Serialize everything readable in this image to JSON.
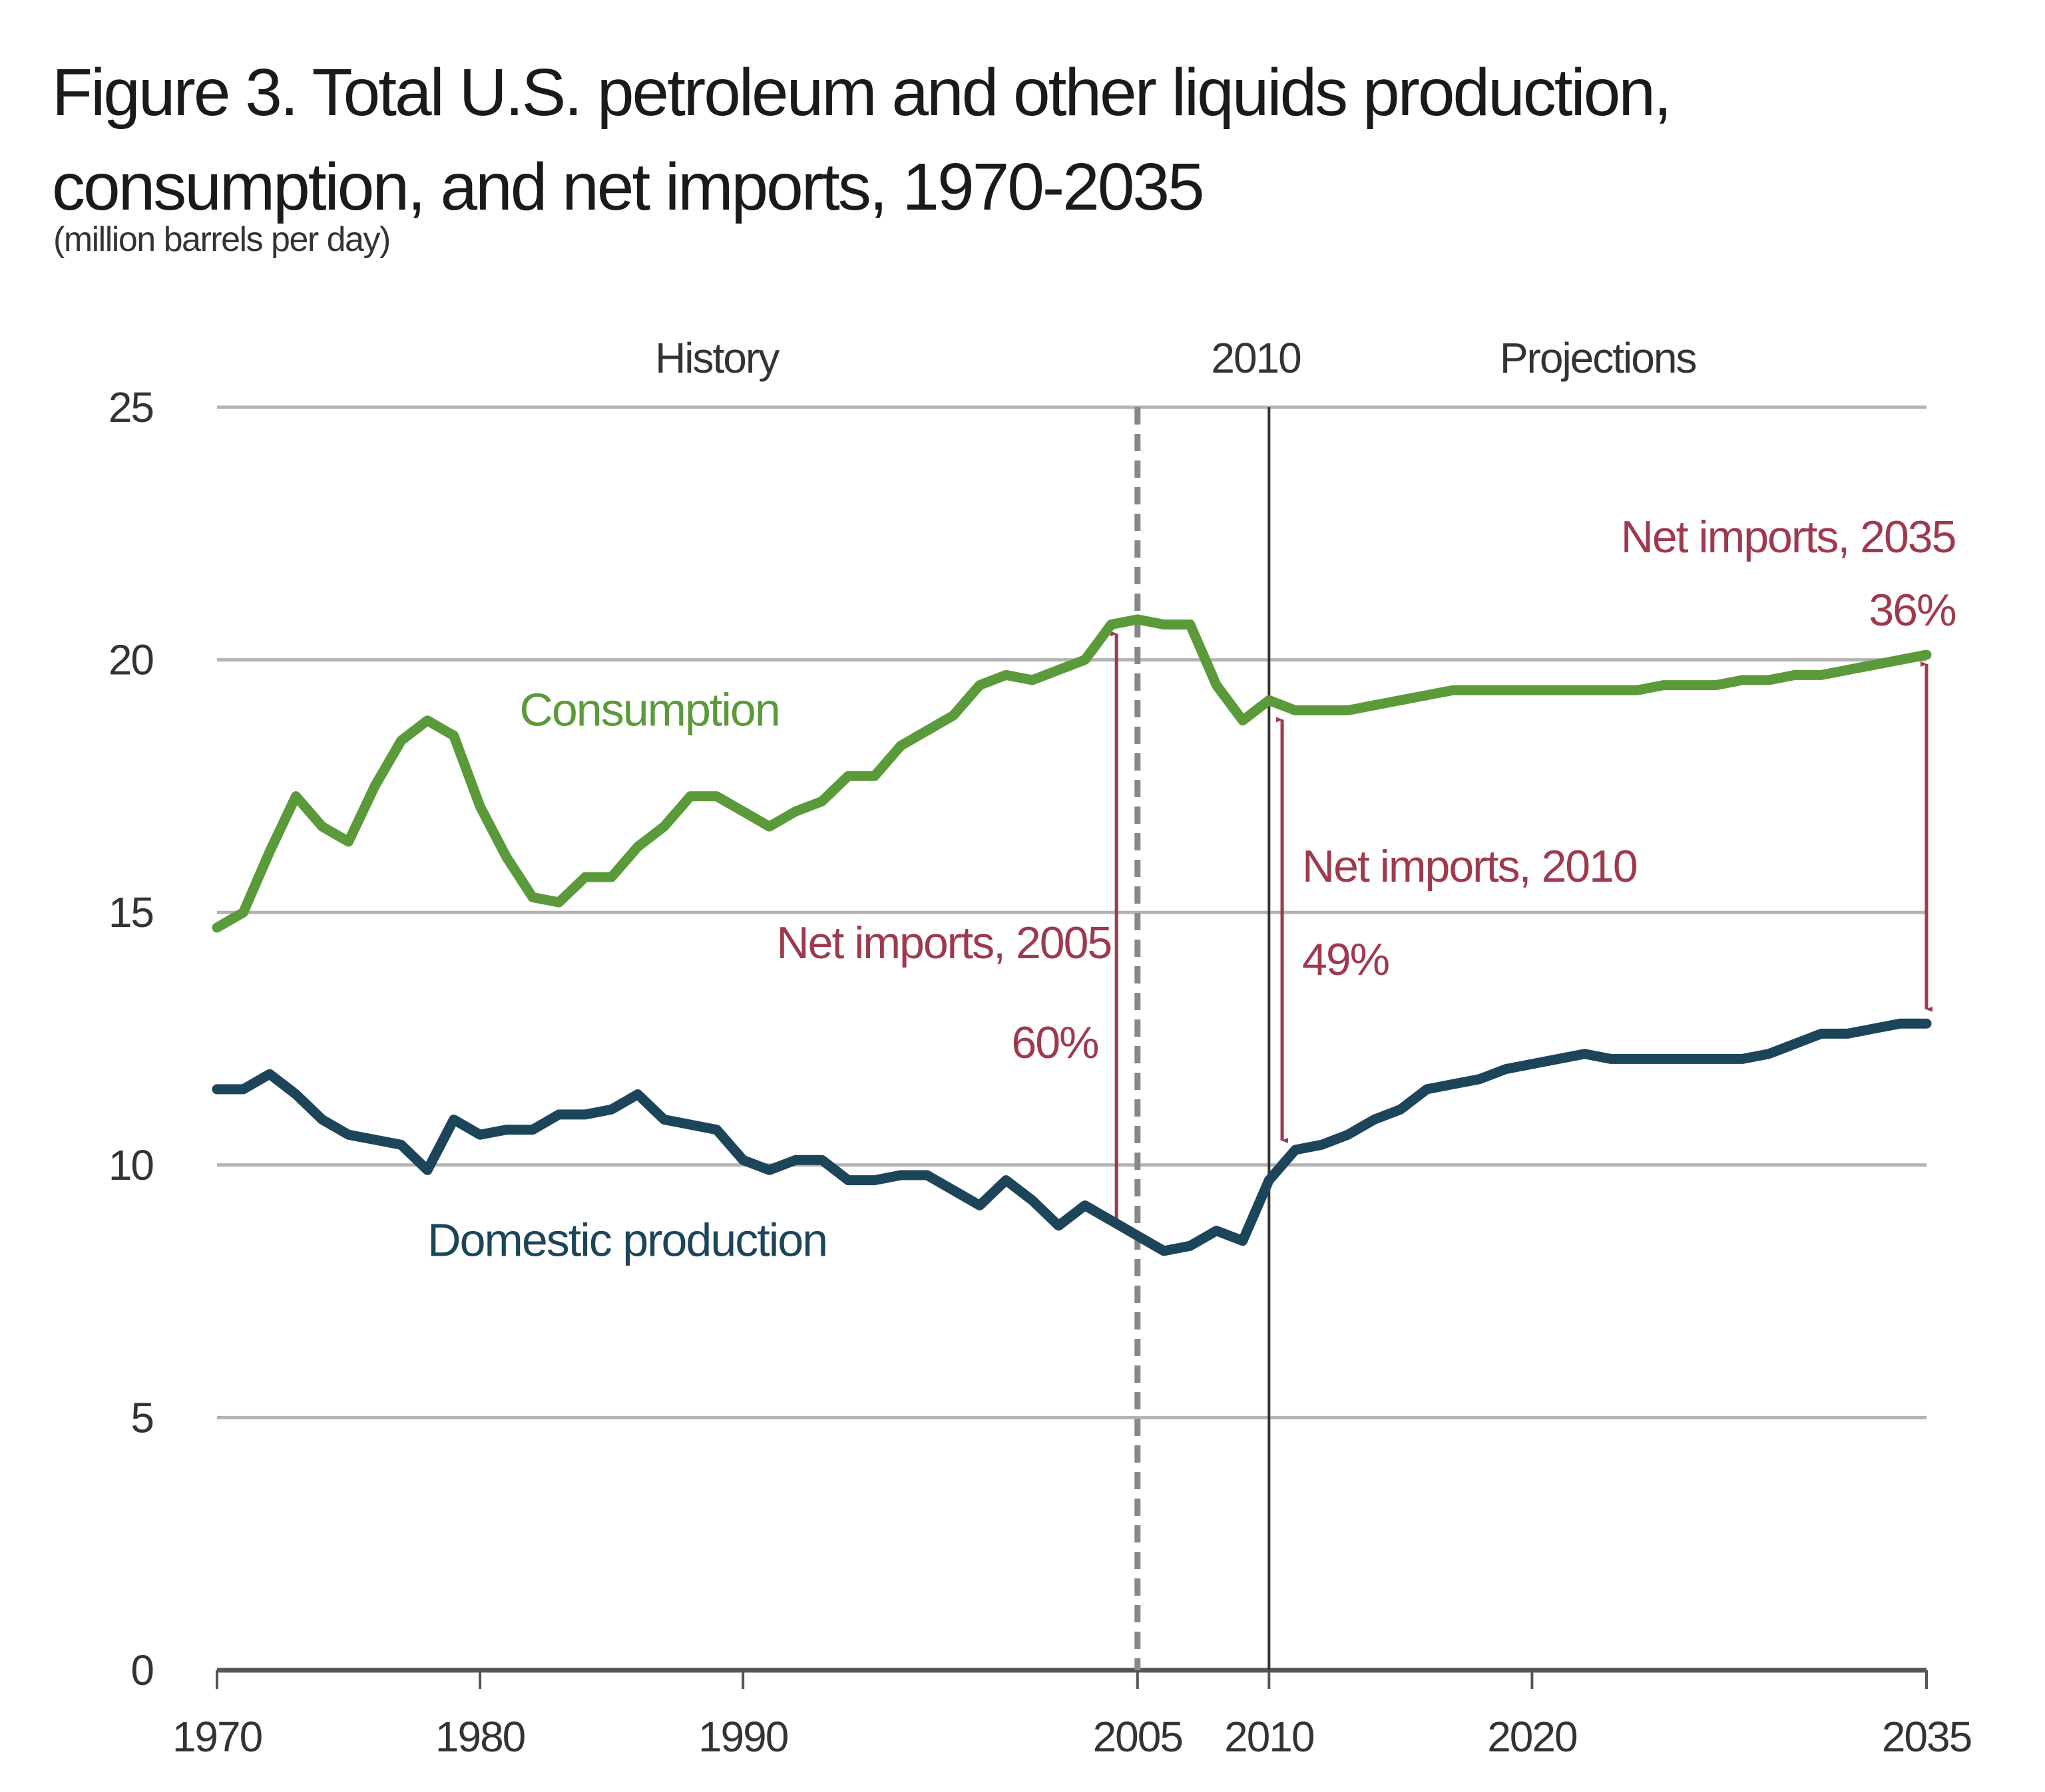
{
  "title": "Figure 3. Total U.S. petroleum and other liquids production, consumption, and net imports, 1970-2035",
  "units": "(million barrels per day)",
  "colors": {
    "consumption": "#5b9a3a",
    "production": "#1d4559",
    "annotation": "#9e3a4e",
    "grid": "#b3b3b3",
    "axis": "#555555",
    "divider": "#333333"
  },
  "chart_data": {
    "type": "line",
    "title": "Figure 3. Total U.S. petroleum and other liquids production, consumption, and net imports, 1970-2035",
    "subtitle": "(million barrels per day)",
    "xlabel": "",
    "ylabel": "million barrels per day",
    "xlim": [
      1970,
      2035
    ],
    "ylim": [
      0,
      25
    ],
    "yticks": [
      0,
      5,
      10,
      15,
      20,
      25
    ],
    "xticks": [
      1970,
      1980,
      1990,
      2005,
      2010,
      2020,
      2035
    ],
    "grid": true,
    "period_labels": [
      {
        "text": "History",
        "x": 1989
      },
      {
        "text": "2010",
        "x": 2009.5
      },
      {
        "text": "Projections",
        "x": 2022.5
      }
    ],
    "dividers": [
      {
        "x": 2005,
        "style": "dashed"
      },
      {
        "x": 2010,
        "style": "solid"
      }
    ],
    "series": [
      {
        "name": "Consumption",
        "label_at": {
          "x": 1981.5,
          "y": 18.7
        },
        "points": [
          [
            1970,
            14.7
          ],
          [
            1971,
            15.0
          ],
          [
            1972,
            16.2
          ],
          [
            1973,
            17.3
          ],
          [
            1974,
            16.7
          ],
          [
            1975,
            16.4
          ],
          [
            1976,
            17.5
          ],
          [
            1977,
            18.4
          ],
          [
            1978,
            18.8
          ],
          [
            1979,
            18.5
          ],
          [
            1980,
            17.1
          ],
          [
            1981,
            16.1
          ],
          [
            1982,
            15.3
          ],
          [
            1983,
            15.2
          ],
          [
            1984,
            15.7
          ],
          [
            1985,
            15.7
          ],
          [
            1986,
            16.3
          ],
          [
            1987,
            16.7
          ],
          [
            1988,
            17.3
          ],
          [
            1989,
            17.3
          ],
          [
            1990,
            17.0
          ],
          [
            1991,
            16.7
          ],
          [
            1992,
            17.0
          ],
          [
            1993,
            17.2
          ],
          [
            1994,
            17.7
          ],
          [
            1995,
            17.7
          ],
          [
            1996,
            18.3
          ],
          [
            1997,
            18.6
          ],
          [
            1998,
            18.9
          ],
          [
            1999,
            19.5
          ],
          [
            2000,
            19.7
          ],
          [
            2001,
            19.6
          ],
          [
            2002,
            19.8
          ],
          [
            2003,
            20.0
          ],
          [
            2004,
            20.7
          ],
          [
            2005,
            20.8
          ],
          [
            2006,
            20.7
          ],
          [
            2007,
            20.7
          ],
          [
            2008,
            19.5
          ],
          [
            2009,
            18.8
          ],
          [
            2010,
            19.2
          ],
          [
            2011,
            19.0
          ],
          [
            2012,
            19.0
          ],
          [
            2013,
            19.0
          ],
          [
            2014,
            19.1
          ],
          [
            2015,
            19.2
          ],
          [
            2016,
            19.3
          ],
          [
            2017,
            19.4
          ],
          [
            2018,
            19.4
          ],
          [
            2019,
            19.4
          ],
          [
            2020,
            19.4
          ],
          [
            2021,
            19.4
          ],
          [
            2022,
            19.4
          ],
          [
            2023,
            19.4
          ],
          [
            2024,
            19.4
          ],
          [
            2025,
            19.5
          ],
          [
            2026,
            19.5
          ],
          [
            2027,
            19.5
          ],
          [
            2028,
            19.6
          ],
          [
            2029,
            19.6
          ],
          [
            2030,
            19.7
          ],
          [
            2031,
            19.7
          ],
          [
            2032,
            19.8
          ],
          [
            2033,
            19.9
          ],
          [
            2034,
            20.0
          ],
          [
            2035,
            20.1
          ]
        ]
      },
      {
        "name": "Domestic production",
        "label_at": {
          "x": 1978,
          "y": 8.2
        },
        "points": [
          [
            1970,
            11.5
          ],
          [
            1971,
            11.5
          ],
          [
            1972,
            11.8
          ],
          [
            1973,
            11.4
          ],
          [
            1974,
            10.9
          ],
          [
            1975,
            10.6
          ],
          [
            1976,
            10.5
          ],
          [
            1977,
            10.4
          ],
          [
            1978,
            9.9
          ],
          [
            1979,
            10.9
          ],
          [
            1980,
            10.6
          ],
          [
            1981,
            10.7
          ],
          [
            1982,
            10.7
          ],
          [
            1983,
            11.0
          ],
          [
            1984,
            11.0
          ],
          [
            1985,
            11.1
          ],
          [
            1986,
            11.4
          ],
          [
            1987,
            10.9
          ],
          [
            1988,
            10.8
          ],
          [
            1989,
            10.7
          ],
          [
            1990,
            10.1
          ],
          [
            1991,
            9.9
          ],
          [
            1992,
            10.1
          ],
          [
            1993,
            10.1
          ],
          [
            1994,
            9.7
          ],
          [
            1995,
            9.7
          ],
          [
            1996,
            9.8
          ],
          [
            1997,
            9.8
          ],
          [
            1998,
            9.5
          ],
          [
            1999,
            9.2
          ],
          [
            2000,
            9.7
          ],
          [
            2001,
            9.3
          ],
          [
            2002,
            8.8
          ],
          [
            2003,
            9.2
          ],
          [
            2004,
            8.9
          ],
          [
            2005,
            8.6
          ],
          [
            2006,
            8.3
          ],
          [
            2007,
            8.4
          ],
          [
            2008,
            8.7
          ],
          [
            2009,
            8.5
          ],
          [
            2010,
            9.7
          ],
          [
            2011,
            10.3
          ],
          [
            2012,
            10.4
          ],
          [
            2013,
            10.6
          ],
          [
            2014,
            10.9
          ],
          [
            2015,
            11.1
          ],
          [
            2016,
            11.5
          ],
          [
            2017,
            11.6
          ],
          [
            2018,
            11.7
          ],
          [
            2019,
            11.9
          ],
          [
            2020,
            12.0
          ],
          [
            2021,
            12.1
          ],
          [
            2022,
            12.2
          ],
          [
            2023,
            12.1
          ],
          [
            2024,
            12.1
          ],
          [
            2025,
            12.1
          ],
          [
            2026,
            12.1
          ],
          [
            2027,
            12.1
          ],
          [
            2028,
            12.1
          ],
          [
            2029,
            12.2
          ],
          [
            2030,
            12.4
          ],
          [
            2031,
            12.6
          ],
          [
            2032,
            12.6
          ],
          [
            2033,
            12.7
          ],
          [
            2034,
            12.8
          ],
          [
            2035,
            12.8
          ]
        ]
      }
    ],
    "annotations": [
      {
        "label": "Net imports, 2005",
        "value": "60%",
        "arrow_x": 2004.2,
        "y_top": 20.7,
        "y_bottom": 8.6
      },
      {
        "label": "Net imports, 2010",
        "value": "49%",
        "arrow_x": 2010.5,
        "y_top": 19.0,
        "y_bottom": 10.3
      },
      {
        "label": "Net imports, 2035",
        "value": "36%",
        "arrow_x": 2035,
        "y_top": 20.1,
        "y_bottom": 12.9
      }
    ]
  }
}
